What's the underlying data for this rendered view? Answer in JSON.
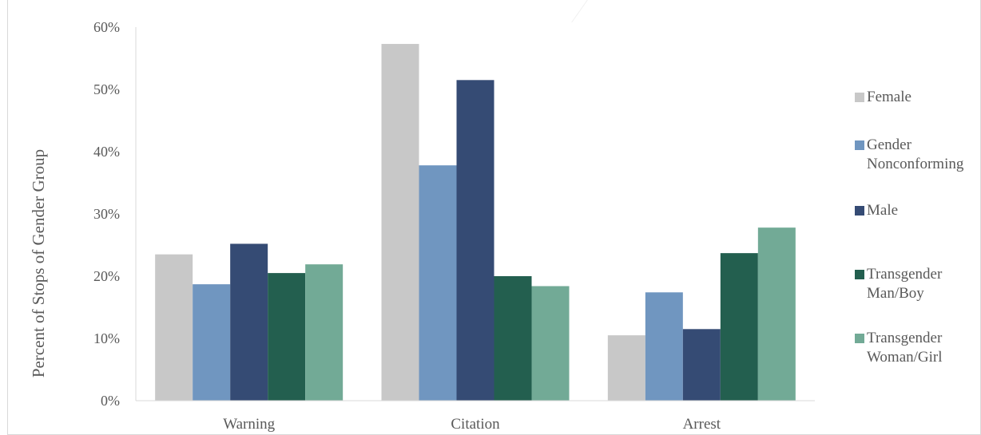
{
  "chart_data": {
    "type": "bar",
    "categories": [
      "Warning",
      "Citation",
      "Arrest"
    ],
    "series": [
      {
        "name": "Female",
        "color": "#c8c8c8",
        "values": [
          23.5,
          57.3,
          10.5
        ]
      },
      {
        "name": "Gender Nonconforming",
        "color": "#7096c0",
        "values": [
          18.7,
          37.8,
          17.4
        ]
      },
      {
        "name": "Male",
        "color": "#354b74",
        "values": [
          25.2,
          51.5,
          11.5
        ]
      },
      {
        "name": "Transgender Man/Boy",
        "color": "#235f4f",
        "values": [
          20.5,
          20.0,
          23.7
        ]
      },
      {
        "name": "Transgender Woman/Girl",
        "color": "#72aa96",
        "values": [
          21.9,
          18.4,
          27.8
        ]
      }
    ],
    "ylabel": "Percent of Stops of Gender Group",
    "yticks": [
      "0%",
      "10%",
      "20%",
      "30%",
      "40%",
      "50%",
      "60%"
    ],
    "ylim": [
      0,
      60
    ],
    "legend_position": "right",
    "grid": false
  }
}
